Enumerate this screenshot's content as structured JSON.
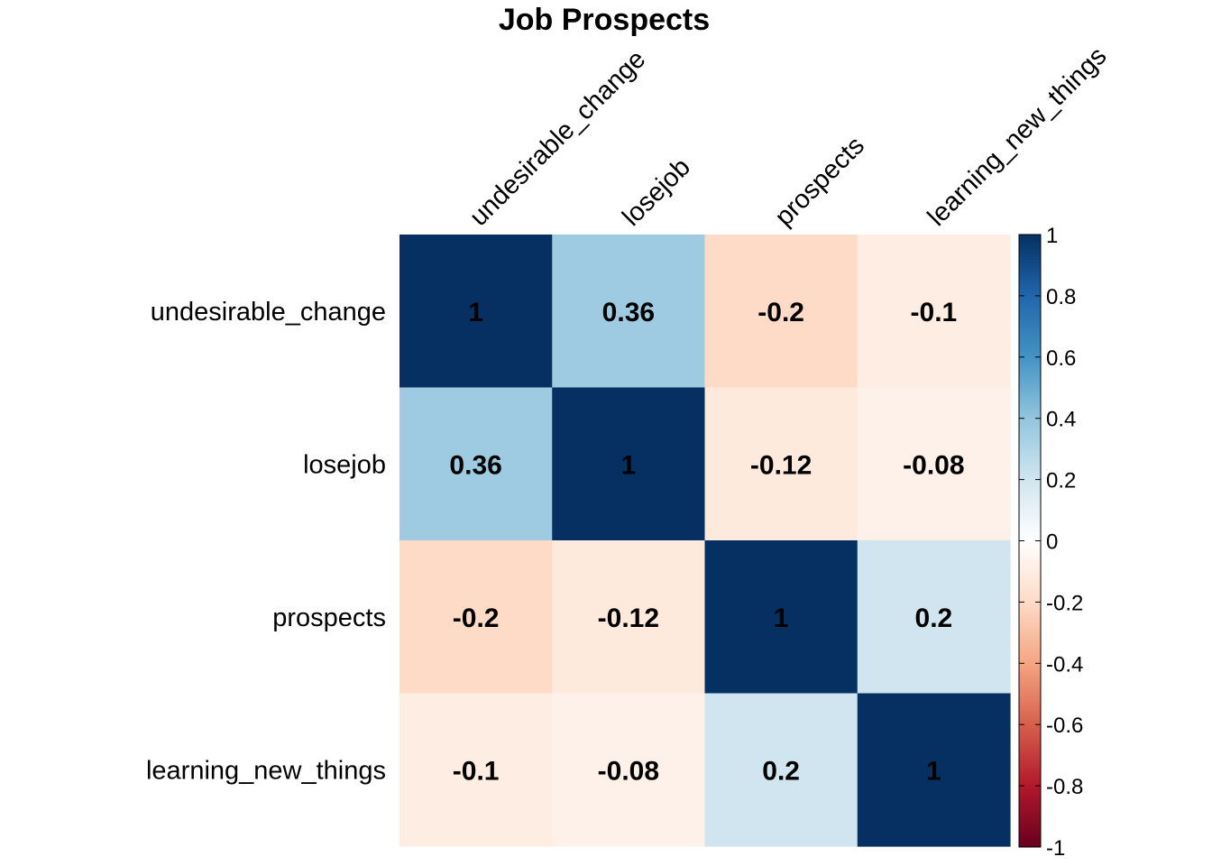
{
  "chart_data": {
    "type": "heatmap",
    "title": "Job Prospects",
    "row_labels": [
      "undesirable_change",
      "losejob",
      "prospects",
      "learning_new_things"
    ],
    "col_labels": [
      "undesirable_change",
      "losejob",
      "prospects",
      "learning_new_things"
    ],
    "values": [
      [
        1,
        0.36,
        -0.2,
        -0.1
      ],
      [
        0.36,
        1,
        -0.12,
        -0.08
      ],
      [
        -0.2,
        -0.12,
        1,
        0.2
      ],
      [
        -0.1,
        -0.08,
        0.2,
        1
      ]
    ],
    "value_labels": [
      [
        "1",
        "0.36",
        "-0.2",
        "-0.1"
      ],
      [
        "0.36",
        "1",
        "-0.12",
        "-0.08"
      ],
      [
        "-0.2",
        "-0.12",
        "1",
        "0.2"
      ],
      [
        "-0.1",
        "-0.08",
        "0.2",
        "1"
      ]
    ],
    "colorbar": {
      "range": [
        -1,
        1
      ],
      "ticks": [
        1,
        0.8,
        0.6,
        0.4,
        0.2,
        0,
        -0.2,
        -0.4,
        -0.6,
        -0.8,
        -1
      ],
      "tick_labels": [
        "1",
        "0.8",
        "0.6",
        "0.4",
        "0.2",
        "0",
        "-0.2",
        "-0.4",
        "-0.6",
        "-0.8",
        "-1"
      ],
      "palette": [
        "#67001F",
        "#B2182B",
        "#D6604D",
        "#F4A582",
        "#FDDBC7",
        "#FFFFFF",
        "#D1E5F0",
        "#92C5DE",
        "#4393C3",
        "#2166AC",
        "#053061"
      ]
    }
  }
}
